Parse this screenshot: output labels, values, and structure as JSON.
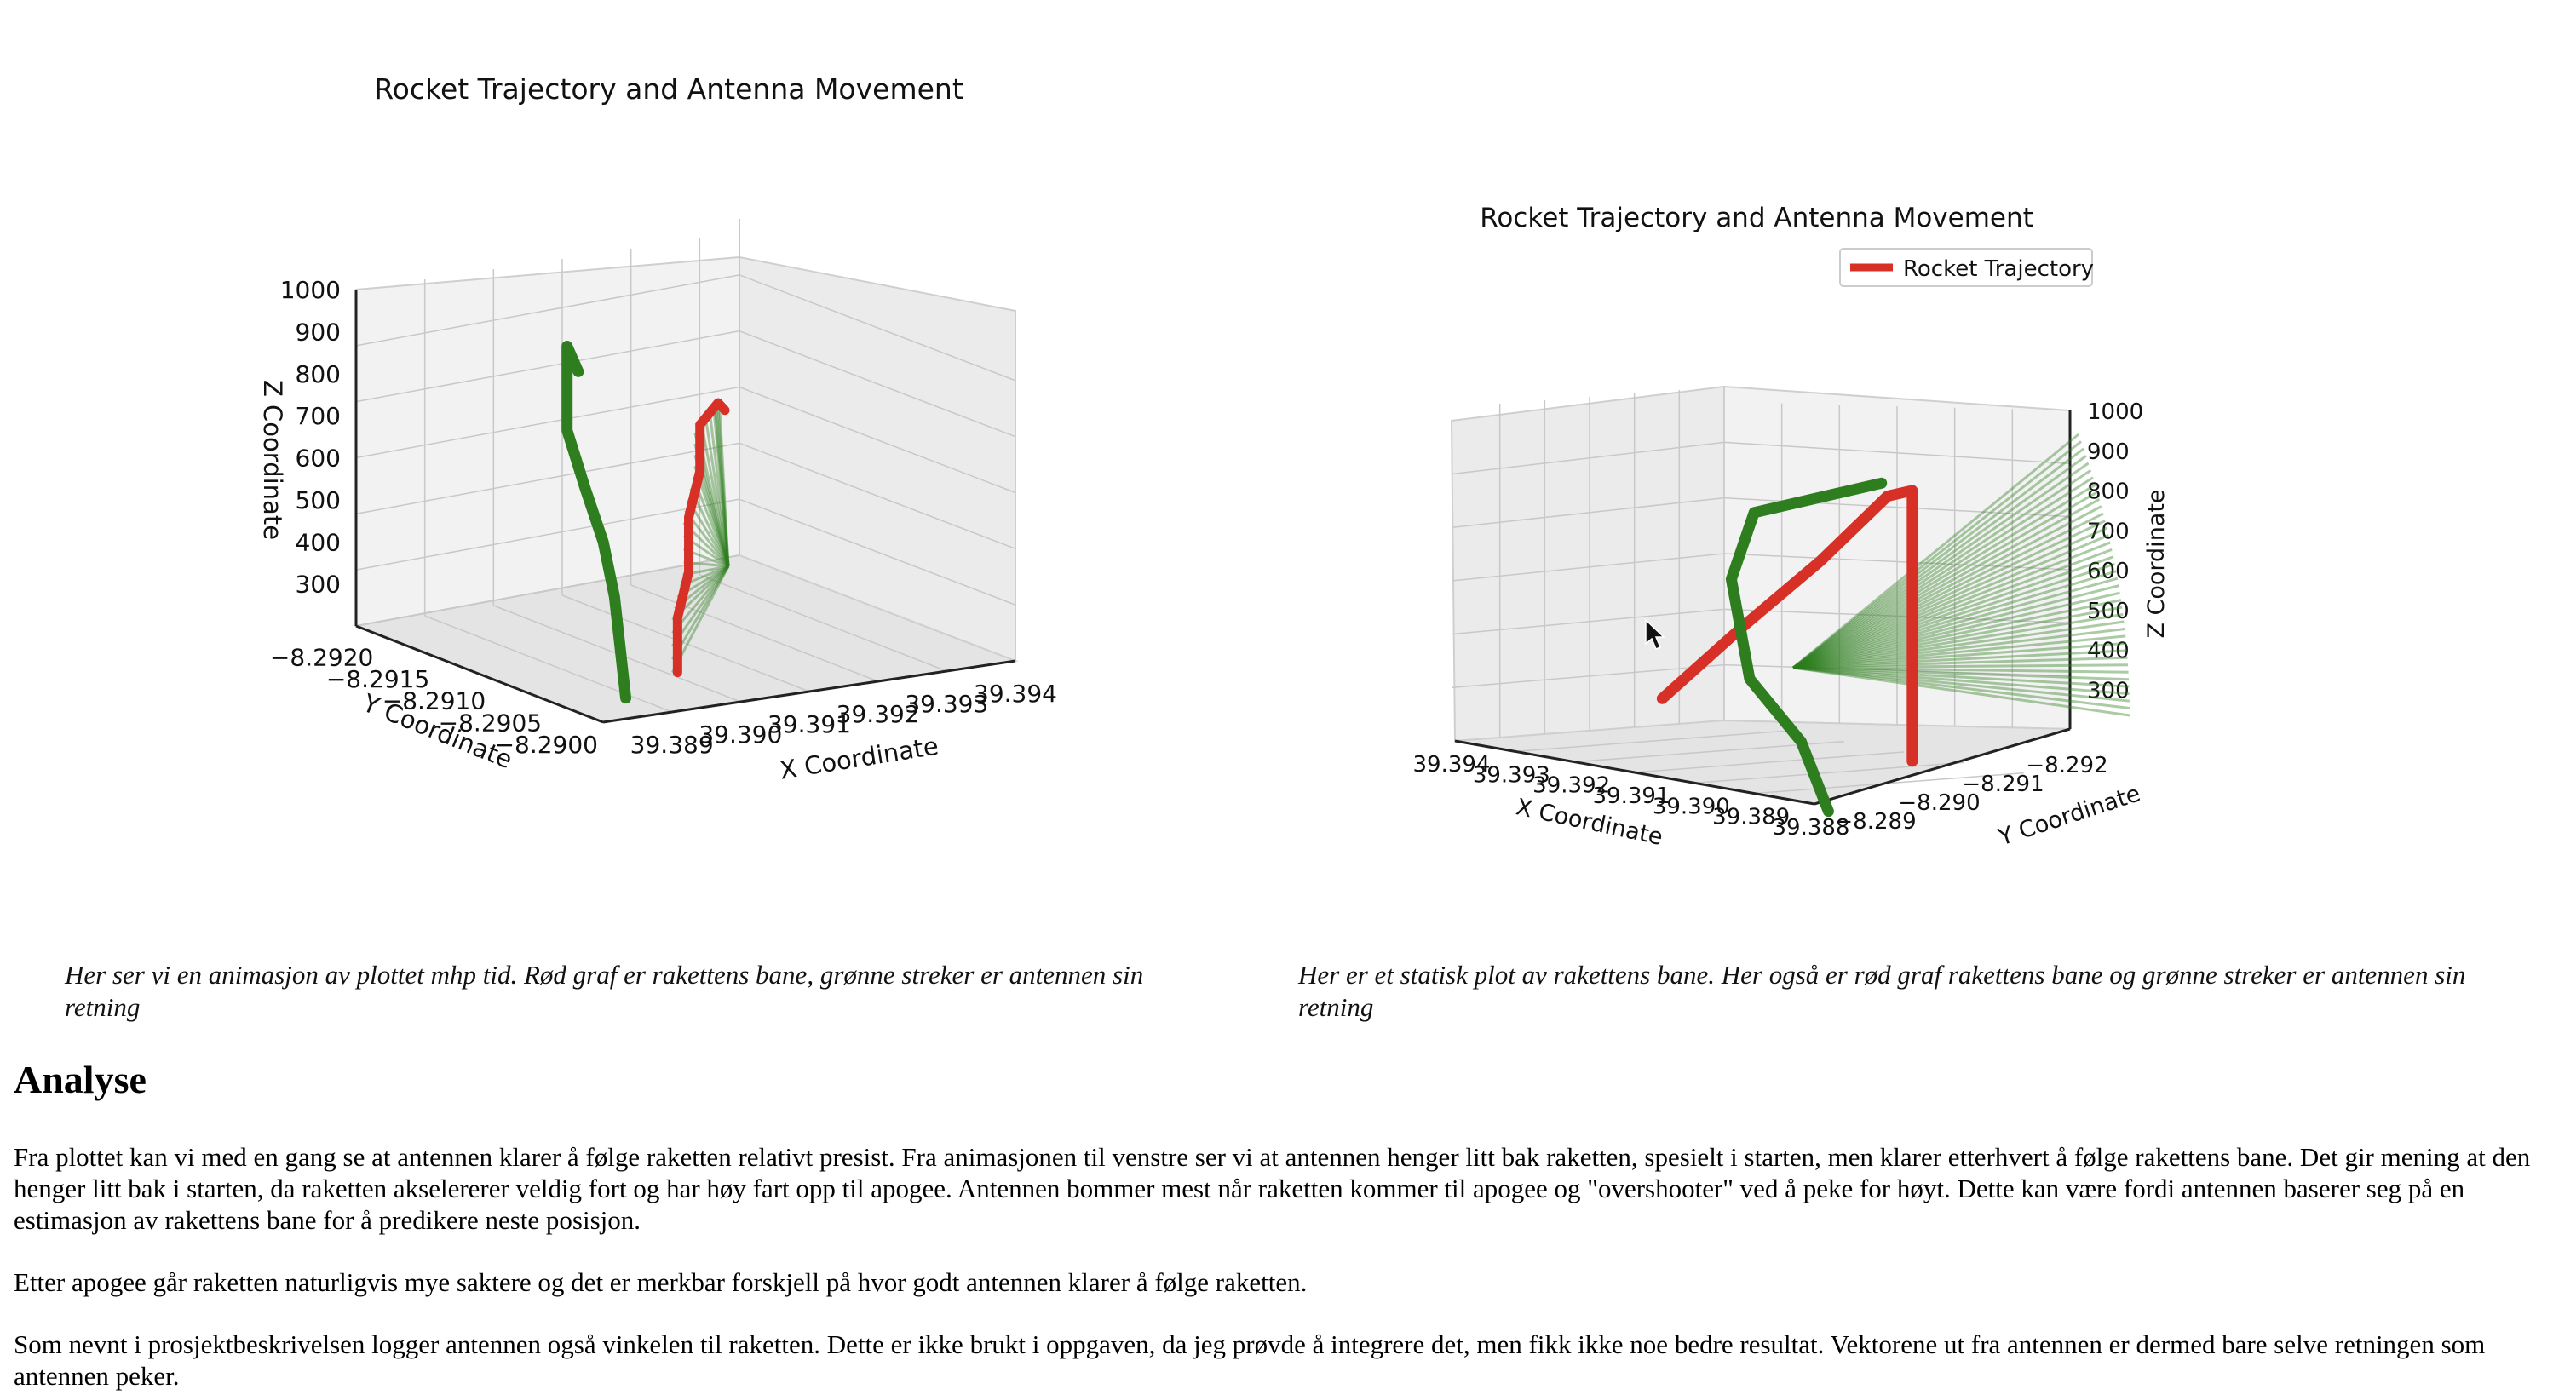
{
  "chart_data": [
    {
      "type": "3d-line",
      "title": "Rocket Trajectory and Antenna Movement",
      "xlabel": "X Coordinate",
      "ylabel": "Y Coordinate",
      "zlabel": "Z Coordinate",
      "x_ticks": [
        "39.389",
        "39.390",
        "39.391",
        "39.392",
        "39.393",
        "39.394"
      ],
      "y_ticks": [
        "−8.2920",
        "−8.2915",
        "−8.2910",
        "−8.2905",
        "−8.2900"
      ],
      "z_ticks": [
        "300",
        "400",
        "500",
        "600",
        "700",
        "800",
        "900",
        "1000"
      ],
      "xlim": [
        39.388,
        39.394
      ],
      "ylim": [
        -8.2922,
        -8.29
      ],
      "zlim": [
        200,
        1000
      ],
      "grid": true,
      "series": [
        {
          "color": "#d73027",
          "points": [
            [
              39.3899,
              -8.2905,
              220
            ],
            [
              39.3899,
              -8.2905,
              350
            ],
            [
              39.3899,
              -8.2904,
              470
            ],
            [
              39.3899,
              -8.2904,
              600
            ],
            [
              39.3899,
              -8.2903,
              720
            ],
            [
              39.3899,
              -8.2903,
              830
            ],
            [
              39.39,
              -8.2902,
              890
            ],
            [
              39.3901,
              -8.2902,
              870
            ]
          ]
        },
        {
          "color": "#2e7d1f",
          "points": [
            [
              39.3898,
              -8.2909,
              120
            ],
            [
              39.3898,
              -8.291,
              350
            ],
            [
              39.3898,
              -8.2911,
              470
            ],
            [
              39.3897,
              -8.2912,
              590
            ],
            [
              39.3896,
              -8.2913,
              720
            ],
            [
              39.3896,
              -8.2913,
              860
            ],
            [
              39.3896,
              -8.2913,
              920
            ],
            [
              39.3896,
              -8.2912,
              870
            ]
          ]
        }
      ]
    },
    {
      "type": "3d-line",
      "title": "Rocket Trajectory and Antenna Movement",
      "legend": [
        "Rocket Trajectory"
      ],
      "legend_position": "top-right",
      "xlabel": "X Coordinate",
      "ylabel": "Y Coordinate",
      "zlabel": "Z Coordinate",
      "x_ticks": [
        "39.394",
        "39.393",
        "39.392",
        "39.391",
        "39.390",
        "39.389",
        "39.388"
      ],
      "y_ticks": [
        "−8.289",
        "−8.290",
        "−8.291",
        "−8.292"
      ],
      "z_ticks": [
        "300",
        "400",
        "500",
        "600",
        "700",
        "800",
        "900",
        "1000"
      ],
      "xlim": [
        39.388,
        39.394
      ],
      "ylim": [
        -8.2925,
        -8.2885
      ],
      "zlim": [
        200,
        1000
      ],
      "grid": true,
      "series": [
        {
          "name": "Rocket Trajectory",
          "color": "#d73027",
          "points": [
            [
              39.3885,
              -8.2905,
              200
            ],
            [
              39.3885,
              -8.2905,
              450
            ],
            [
              39.3885,
              -8.2905,
              700
            ],
            [
              39.3885,
              -8.2905,
              880
            ],
            [
              39.3887,
              -8.2903,
              870
            ],
            [
              39.3895,
              -8.29,
              700
            ],
            [
              39.3905,
              -8.2897,
              520
            ],
            [
              39.3915,
              -8.2894,
              330
            ]
          ]
        },
        {
          "color": "#2e7d1f",
          "points": [
            [
              39.3883,
              -8.289,
              150
            ],
            [
              39.3895,
              -8.2897,
              260
            ],
            [
              39.391,
              -8.2903,
              350
            ],
            [
              39.3912,
              -8.2902,
              600
            ],
            [
              39.3905,
              -8.2899,
              800
            ],
            [
              39.3888,
              -8.2903,
              900
            ]
          ]
        }
      ]
    }
  ],
  "captions": {
    "left": "Her ser vi en animasjon av plottet mhp tid. Rød graf er rakettens bane, grønne streker er antennen sin retning",
    "right": "Her er et statisk plot av rakettens bane. Her også er rød graf rakettens bane og grønne streker er antennen sin retning"
  },
  "analysis": {
    "heading": "Analyse",
    "paragraphs": [
      "Fra plottet kan vi med en gang se at antennen klarer å følge raketten relativt presist. Fra animasjonen til venstre ser vi at antennen henger litt bak raketten, spesielt i starten, men klarer etterhvert å følge rakettens bane. Det gir mening at den henger litt bak i starten, da raketten akselererer veldig fort og har høy fart opp til apogee. Antennen bommer mest når raketten kommer til apogee og \"overshooter\" ved å peke for høyt. Dette kan være fordi antennen baserer seg på en estimasjon av rakettens bane for å predikere neste posisjon.",
      "Etter apogee går raketten naturligvis mye saktere og det er merkbar forskjell på hvor godt antennen klarer å følge raketten.",
      "Som nevnt i prosjektbeskrivelsen logger antennen også vinkelen til raketten. Dette er ikke brukt i oppgaven, da jeg prøvde å integrere det, men fikk ikke noe bedre resultat. Vektorene ut fra antennen er dermed bare selve retningen som antennen peker."
    ]
  }
}
